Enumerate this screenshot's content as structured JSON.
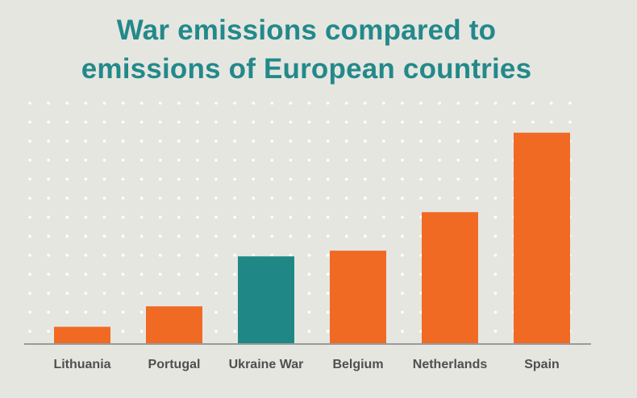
{
  "chart_data": {
    "type": "bar",
    "title_lines": [
      "War emissions compared to",
      "emissions of European countries"
    ],
    "categories": [
      "Lithuania",
      "Portugal",
      "Ukraine War",
      "Belgium",
      "Netherlands",
      "Spain"
    ],
    "values": [
      21,
      46,
      107,
      114,
      161,
      258
    ],
    "highlight_category": "Ukraine War",
    "xlabel": "",
    "ylabel": "",
    "ylim": [
      0,
      300
    ],
    "grid": "dotted",
    "legend": "none",
    "colors": {
      "bar": "#f06a24",
      "highlight": "#1f8886",
      "title": "#23898a",
      "tick_label": "#4f4f4f",
      "axis": "#9a9a9a",
      "grid_dot": "#ffffff",
      "background": "#e6e6e1"
    }
  }
}
